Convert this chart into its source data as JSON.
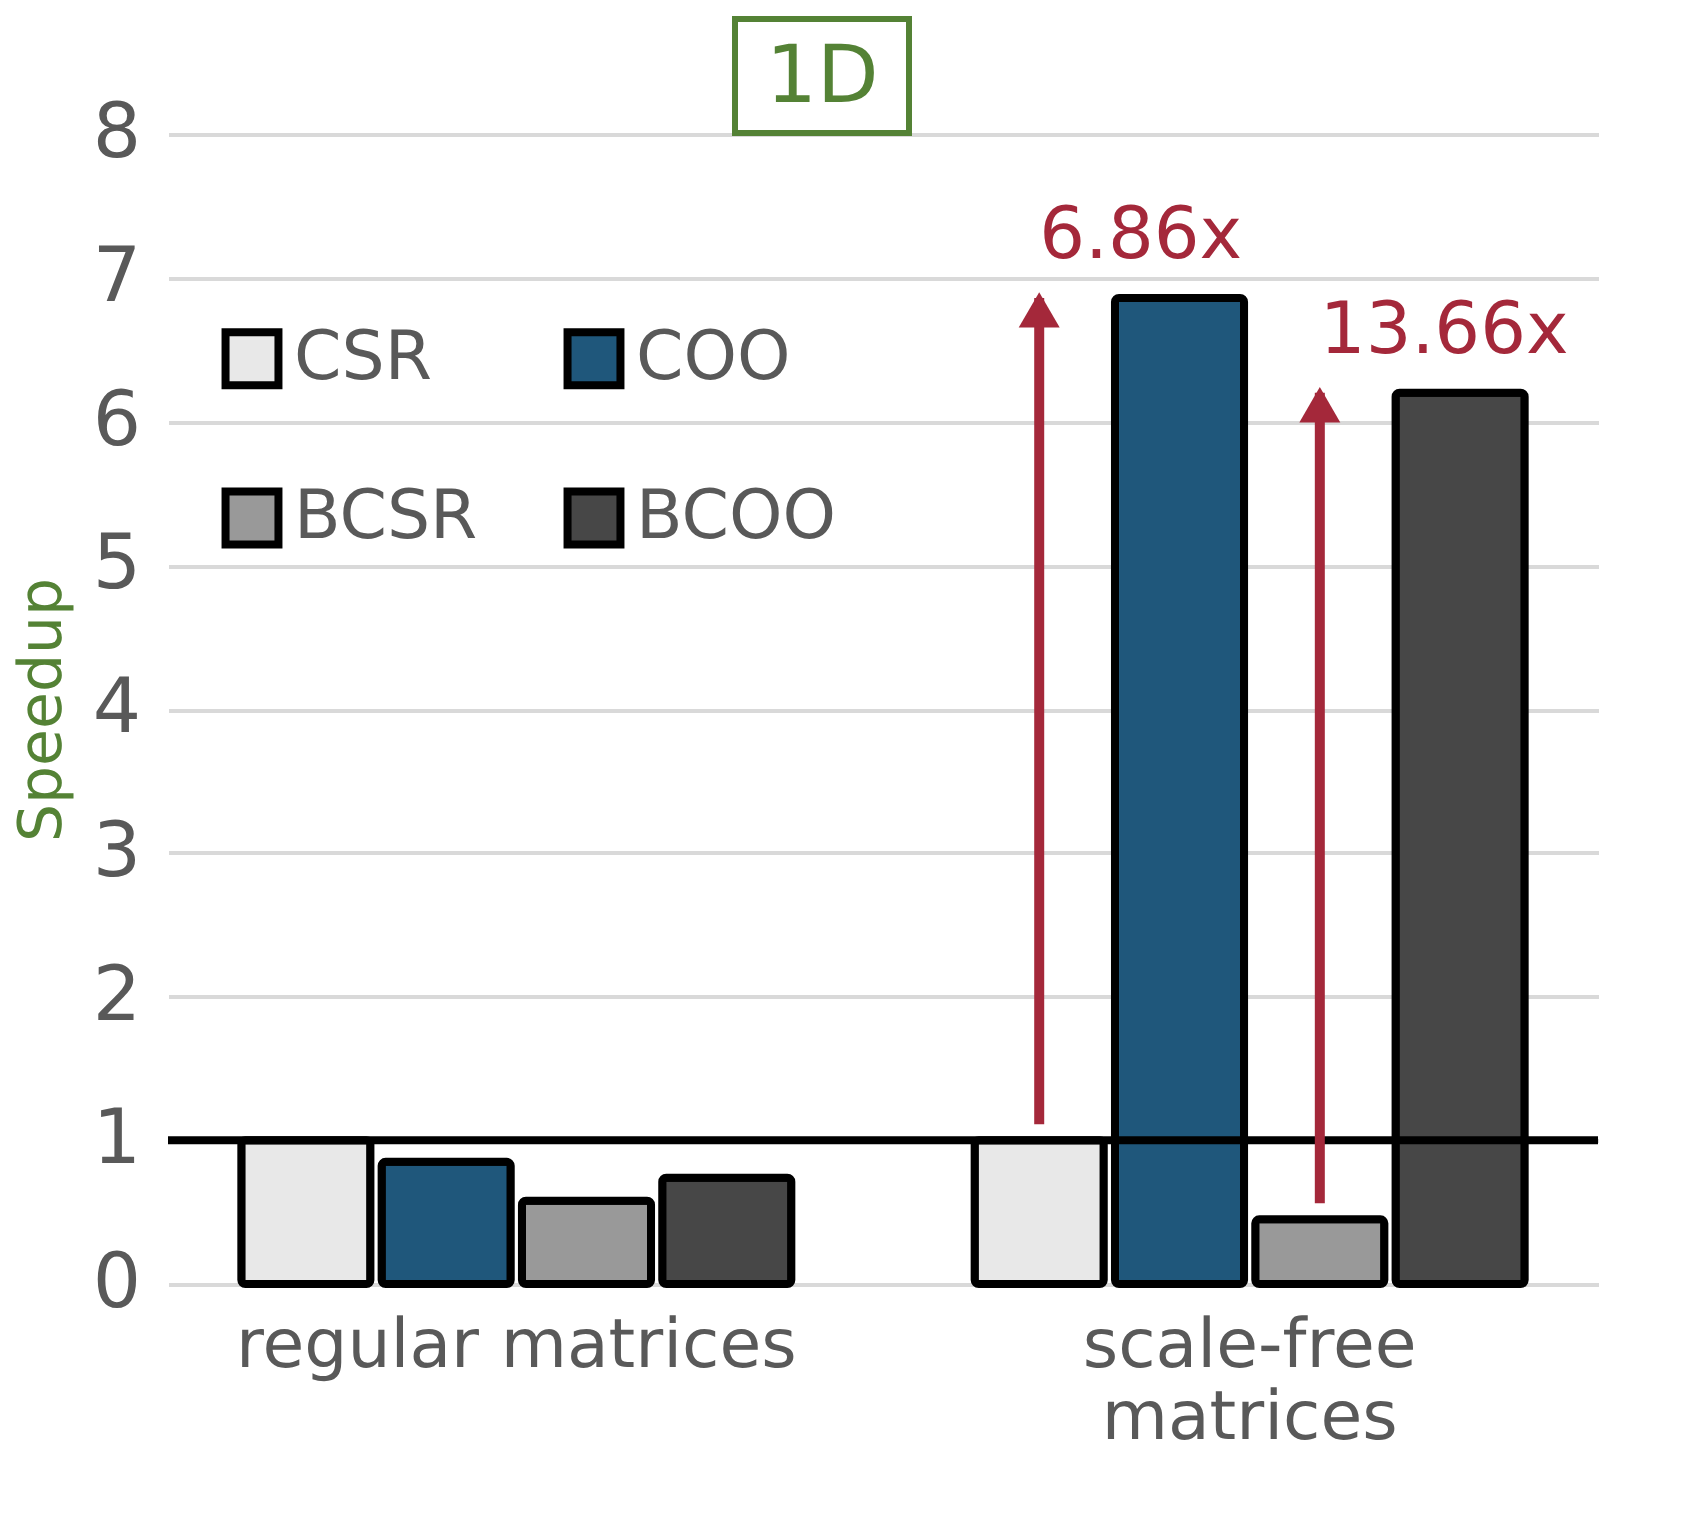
{
  "chart_data": {
    "type": "bar",
    "title": "1D",
    "ylabel": "Speedup",
    "categories": [
      "regular matrices",
      "scale-free matrices"
    ],
    "series": [
      {
        "name": "CSR",
        "color": "#e8e8e8",
        "values": [
          1.0,
          1.0
        ]
      },
      {
        "name": "COO",
        "color": "#1f577b",
        "values": [
          0.85,
          6.86
        ]
      },
      {
        "name": "BCSR",
        "color": "#999999",
        "values": [
          0.58,
          0.45
        ]
      },
      {
        "name": "BCOO",
        "color": "#474747",
        "values": [
          0.74,
          6.2
        ]
      }
    ],
    "ylim": [
      0,
      8
    ],
    "yticks": [
      0,
      1,
      2,
      3,
      4,
      5,
      6,
      7,
      8
    ],
    "grid": "y",
    "legend": "top left",
    "ref_lines": [
      {
        "axis": "y",
        "value": 1,
        "color": "#000000"
      }
    ],
    "annotations": [
      "6.86x",
      "13.66x"
    ]
  }
}
